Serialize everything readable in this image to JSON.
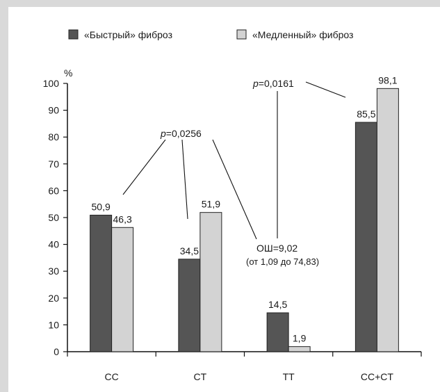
{
  "chart_data": {
    "type": "bar",
    "categories": [
      "CC",
      "CT",
      "TT",
      "CC+CT"
    ],
    "series": [
      {
        "name": "«Быстрый» фиброз",
        "values": [
          50.9,
          34.5,
          14.5,
          85.5
        ],
        "labels": [
          "50,9",
          "34,5",
          "14,5",
          "85,5"
        ],
        "color": "#555555"
      },
      {
        "name": "«Медленный» фиброз",
        "values": [
          46.3,
          51.9,
          1.9,
          98.1
        ],
        "labels": [
          "46,3",
          "51,9",
          "1,9",
          "98,1"
        ],
        "color": "#d3d3d3"
      }
    ],
    "ylabel": "%",
    "ylim": [
      0,
      100
    ],
    "yticks": [
      "0",
      "10",
      "20",
      "30",
      "40",
      "50",
      "60",
      "70",
      "80",
      "90",
      "100"
    ],
    "grid": false,
    "legend_position": "top",
    "annotations": {
      "p1": {
        "prefix": "p",
        "value": "=0,0256"
      },
      "p2": {
        "prefix": "p",
        "value": "=0,0161"
      },
      "or_line1": "ОШ=9,02",
      "or_line2": "(от 1,09 до 74,83)"
    }
  }
}
